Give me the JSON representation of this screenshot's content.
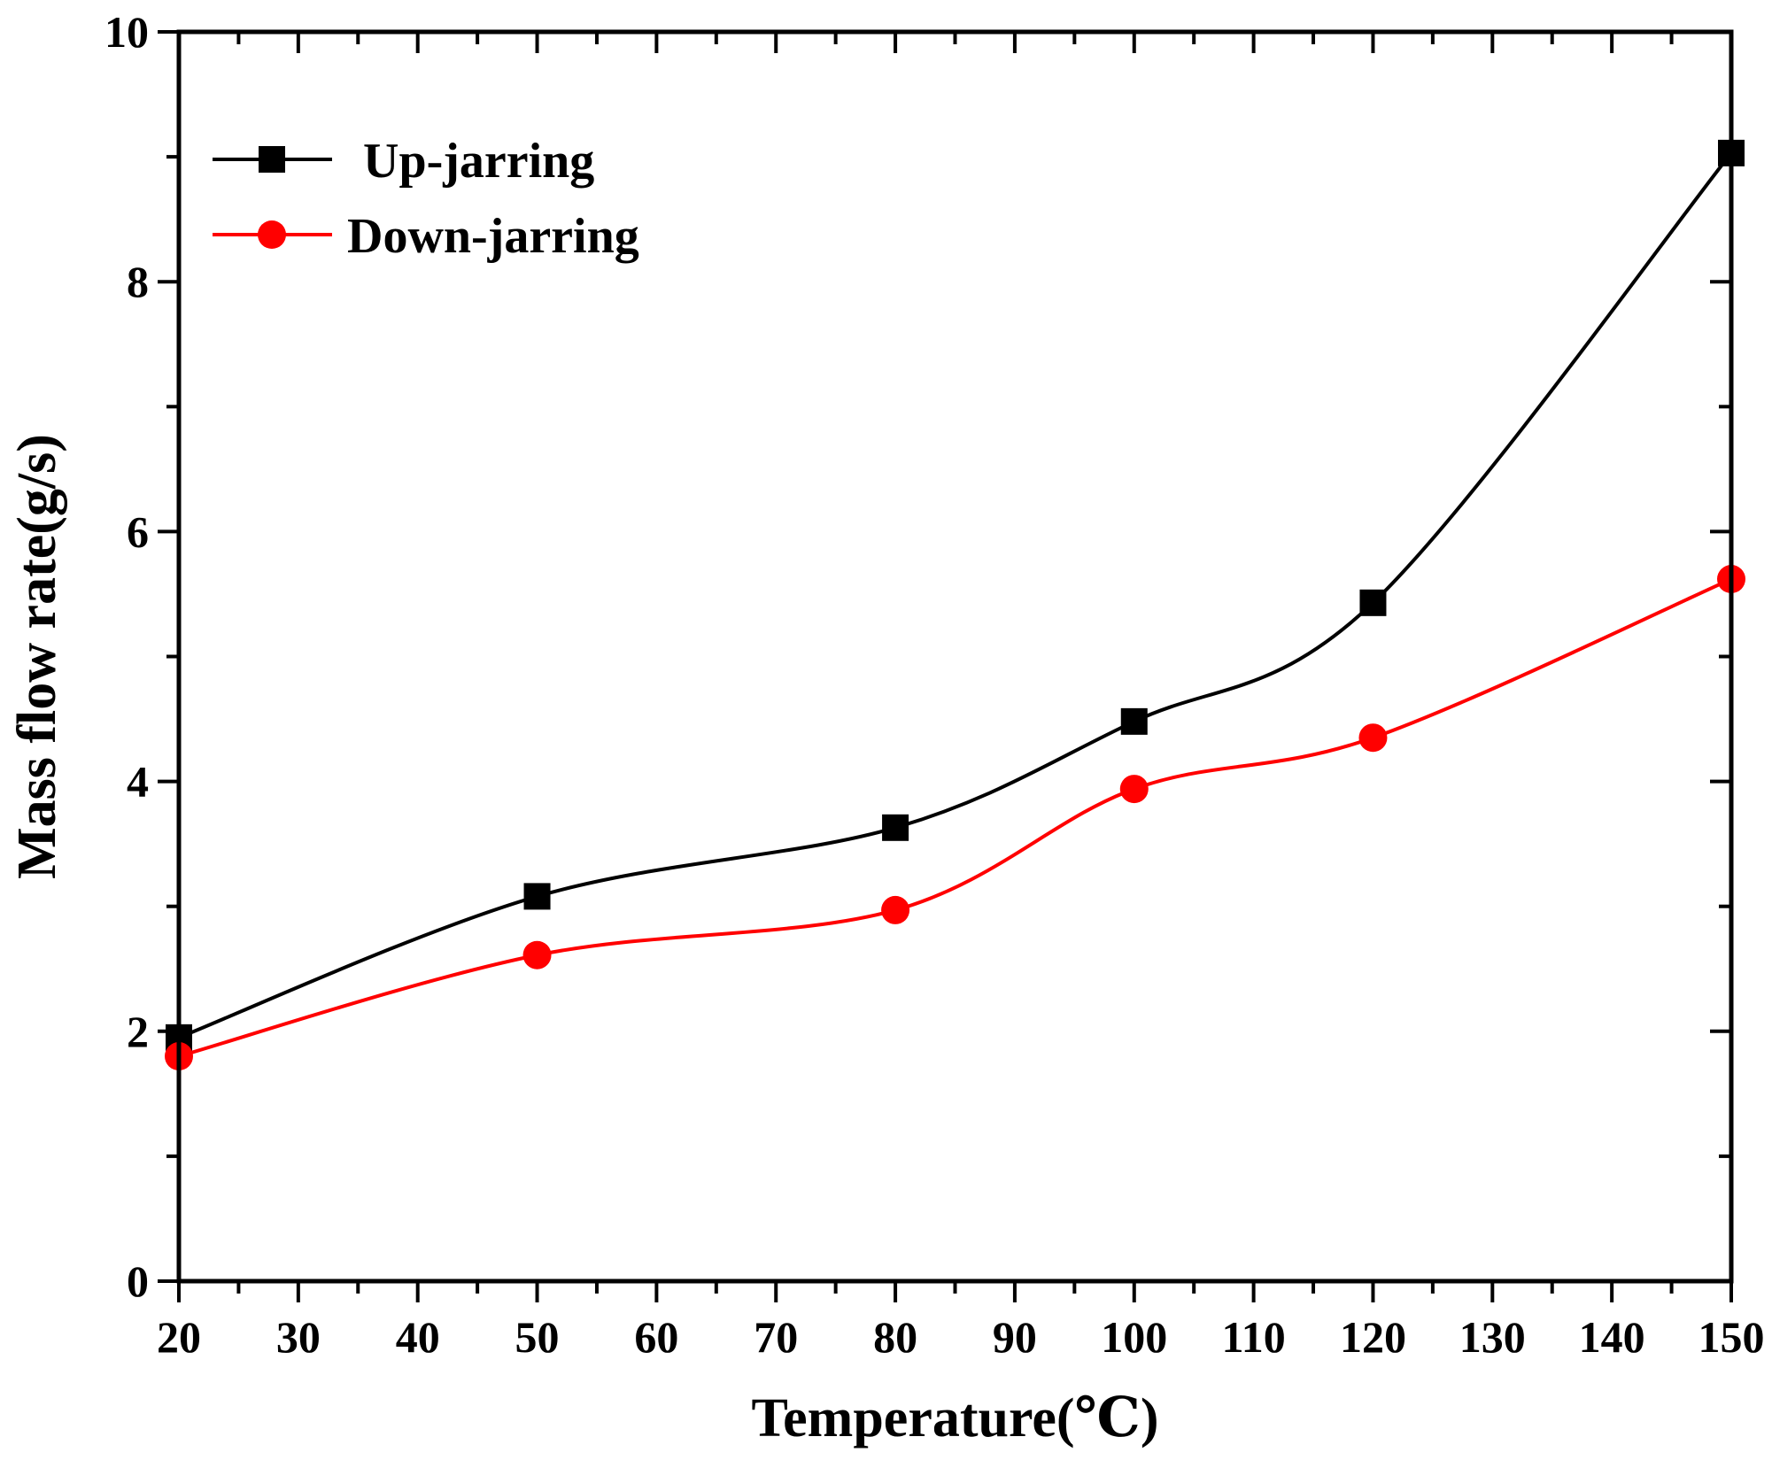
{
  "chart_data": {
    "type": "line",
    "title": "",
    "xlabel": "Temperature(℃)",
    "ylabel": "Mass flow rate(g/s)",
    "xlim": [
      20,
      150
    ],
    "ylim": [
      0,
      10
    ],
    "xticks": [
      20,
      30,
      40,
      50,
      60,
      70,
      80,
      90,
      100,
      110,
      120,
      130,
      140,
      150
    ],
    "yticks": [
      0,
      2,
      4,
      6,
      8,
      10
    ],
    "x_minor_step": 5,
    "y_minor_step": 1,
    "grid": false,
    "legend_position": "top-left",
    "series": [
      {
        "name": "Up-jarring",
        "color": "#000000",
        "marker": "square",
        "x": [
          20,
          50,
          80,
          100,
          120,
          150
        ],
        "values": [
          1.95,
          3.08,
          3.63,
          4.48,
          5.43,
          9.03
        ]
      },
      {
        "name": "Down-jarring",
        "color": "#ff0000",
        "marker": "circle",
        "x": [
          20,
          50,
          80,
          100,
          120,
          150
        ],
        "values": [
          1.8,
          2.61,
          2.97,
          3.94,
          4.35,
          5.62
        ]
      }
    ]
  }
}
